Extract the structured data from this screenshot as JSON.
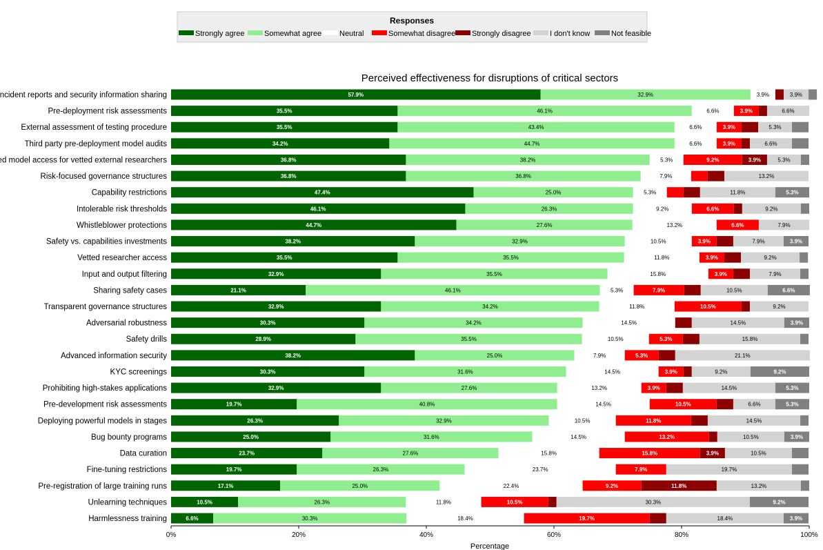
{
  "chart_data": {
    "type": "bar",
    "orientation": "horizontal-stacked",
    "title": "Perceived effectiveness for disruptions of critical sectors",
    "xlabel": "Percentage",
    "xlim": [
      0,
      100
    ],
    "xticks": [
      "0%",
      "20%",
      "40%",
      "60%",
      "80%",
      "100%"
    ],
    "legend": {
      "title": "Responses",
      "placement": "top-center",
      "entries": [
        "Strongly agree",
        "Somewhat agree",
        "Neutral",
        "Somewhat disagree",
        "Strongly disagree",
        "I don't know",
        "Not feasible"
      ]
    },
    "colors": {
      "Strongly agree": "#006400",
      "Somewhat agree": "#90ee90",
      "Neutral": "#ffffff",
      "Somewhat disagree": "#ff0000",
      "Strongly disagree": "#8b0000",
      "I don't know": "#d3d3d3",
      "Not feasible": "#808080"
    },
    "categories": [
      "Safety incident reports and security information sharing",
      "Pre-deployment risk assessments",
      "External assessment of testing procedure",
      "Third party pre-deployment model audits",
      "Advanced model access for vetted external researchers",
      "Risk-focused governance structures",
      "Capability restrictions",
      "Intolerable risk thresholds",
      "Whistleblower protections",
      "Safety vs. capabilities investments",
      "Vetted researcher access",
      "Input and output filtering",
      "Sharing safety cases",
      "Transparent governance structures",
      "Adversarial robustness",
      "Safety drills",
      "Advanced information security",
      "KYC screenings",
      "Prohibiting high-stakes applications",
      "Pre-development risk assessments",
      "Deploying powerful models in stages",
      "Bug bounty programs",
      "Data curation",
      "Fine-tuning restrictions",
      "Pre-registration of large training runs",
      "Unlearning techniques",
      "Harmlessness training"
    ],
    "series": [
      {
        "name": "Strongly agree",
        "values": [
          57.9,
          35.5,
          35.5,
          34.2,
          36.8,
          36.8,
          47.4,
          46.1,
          44.7,
          38.2,
          35.5,
          32.9,
          21.1,
          32.9,
          30.3,
          28.9,
          38.2,
          30.3,
          32.9,
          19.7,
          26.3,
          25.0,
          23.7,
          19.7,
          17.1,
          10.5,
          6.6
        ]
      },
      {
        "name": "Somewhat agree",
        "values": [
          32.9,
          46.1,
          43.4,
          44.7,
          38.2,
          36.8,
          25.0,
          26.3,
          27.6,
          32.9,
          35.5,
          35.5,
          46.1,
          34.2,
          34.2,
          35.5,
          25.0,
          31.6,
          27.6,
          40.8,
          32.9,
          31.6,
          27.6,
          26.3,
          25.0,
          26.3,
          30.3
        ]
      },
      {
        "name": "Neutral",
        "values": [
          3.9,
          6.6,
          6.6,
          6.6,
          5.3,
          7.9,
          5.3,
          9.2,
          13.2,
          10.5,
          11.8,
          15.8,
          5.3,
          11.8,
          14.5,
          10.5,
          7.9,
          14.5,
          13.2,
          14.5,
          10.5,
          14.5,
          15.8,
          23.7,
          22.4,
          11.8,
          18.4
        ]
      },
      {
        "name": "Somewhat disagree",
        "values": [
          0,
          3.9,
          3.9,
          3.9,
          9.2,
          2.6,
          2.6,
          6.6,
          6.6,
          3.9,
          3.9,
          3.9,
          7.9,
          10.5,
          0,
          5.3,
          5.3,
          3.9,
          3.9,
          10.5,
          11.8,
          13.2,
          15.8,
          7.9,
          9.2,
          10.5,
          19.7
        ]
      },
      {
        "name": "Strongly disagree",
        "values": [
          1.3,
          1.3,
          2.6,
          1.3,
          3.9,
          2.6,
          2.6,
          1.3,
          0,
          2.6,
          2.6,
          2.6,
          2.6,
          1.3,
          2.6,
          2.6,
          2.6,
          1.3,
          2.6,
          2.6,
          2.6,
          1.3,
          3.9,
          0,
          11.8,
          1.3,
          2.6
        ]
      },
      {
        "name": "I don't know",
        "values": [
          3.9,
          6.6,
          5.3,
          6.6,
          5.3,
          13.2,
          11.8,
          9.2,
          7.9,
          7.9,
          9.2,
          7.9,
          10.5,
          9.2,
          14.5,
          15.8,
          21.1,
          9.2,
          14.5,
          6.6,
          14.5,
          10.5,
          10.5,
          19.7,
          13.2,
          30.3,
          18.4
        ]
      },
      {
        "name": "Not feasible",
        "values": [
          1.3,
          0,
          2.6,
          2.6,
          1.3,
          0,
          5.3,
          1.3,
          0,
          3.9,
          1.3,
          1.3,
          6.6,
          0,
          3.9,
          1.3,
          0,
          9.2,
          5.3,
          5.3,
          1.3,
          3.9,
          2.6,
          2.6,
          1.3,
          9.2,
          3.9
        ]
      }
    ]
  }
}
